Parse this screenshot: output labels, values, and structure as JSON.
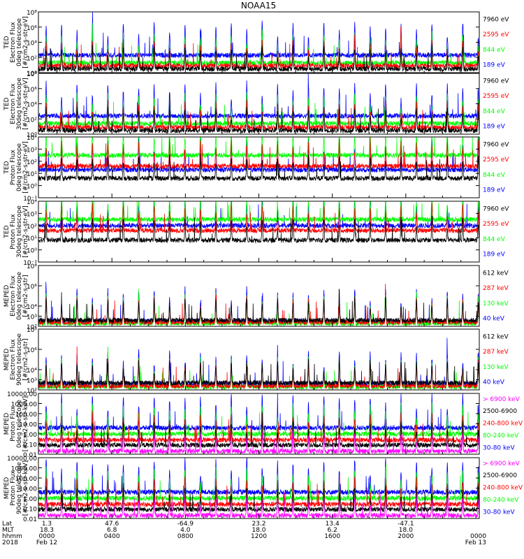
{
  "title": "NOAA15",
  "colors": {
    "black": "#000000",
    "blue": "#0000ff",
    "green": "#00ff00",
    "red": "#ff0000",
    "magenta": "#ff00ff"
  },
  "panels": [
    {
      "ylabel_lines": [
        "TED",
        "Electron Flux",
        "0deg telescope",
        "[#/cm2-s-str-eV]"
      ],
      "ticks": [
        {
          "label": "10⁸",
          "v": 8
        },
        {
          "label": "10⁶",
          "v": 6
        },
        {
          "label": "10⁴",
          "v": 4
        },
        {
          "label": "10²",
          "v": 2
        },
        {
          "label": "10⁰",
          "v": 0
        }
      ],
      "ylog": [
        0,
        8
      ],
      "legend": [
        {
          "text": "7960 eV",
          "color": "#000000"
        },
        {
          "text": "2595 eV",
          "color": "#ff0000"
        },
        {
          "text": "844 eV",
          "color": "#00ff00"
        },
        {
          "text": "189 eV",
          "color": "#0000ff"
        }
      ],
      "levels": {
        "blue": 2.3,
        "green": 1.3,
        "red": 0.9,
        "black": 0.5
      }
    },
    {
      "ylabel_lines": [
        "TED",
        "Electron Flux",
        "30deg telescope",
        "[#/cm2-s-str-eV]"
      ],
      "ticks": [
        {
          "label": "10⁸",
          "v": 8
        },
        {
          "label": "10⁶",
          "v": 6
        },
        {
          "label": "10⁴",
          "v": 4
        },
        {
          "label": "10²",
          "v": 2
        },
        {
          "label": "10⁰",
          "v": 0
        }
      ],
      "ylog": [
        0,
        8
      ],
      "legend": [
        {
          "text": "7960 eV",
          "color": "#000000"
        },
        {
          "text": "2595 eV",
          "color": "#ff0000"
        },
        {
          "text": "844 eV",
          "color": "#00ff00"
        },
        {
          "text": "189 eV",
          "color": "#0000ff"
        }
      ],
      "levels": {
        "blue": 2.4,
        "green": 1.4,
        "red": 0.9,
        "black": 0.5
      }
    },
    {
      "ylabel_lines": [
        "TED",
        "Proton Flux",
        "0deg telescope",
        "[#/cm2-s-str-eV]"
      ],
      "ticks": [
        {
          "label": "10⁴",
          "v": 4
        },
        {
          "label": "10³",
          "v": 3
        },
        {
          "label": "10²",
          "v": 2
        },
        {
          "label": "10¹",
          "v": 1
        },
        {
          "label": "10⁰",
          "v": 0
        },
        {
          "label": "10⁻¹",
          "v": -1
        }
      ],
      "ylog": [
        -1,
        4
      ],
      "legend": [
        {
          "text": "7960 eV",
          "color": "#000000"
        },
        {
          "text": "2595 eV",
          "color": "#ff0000"
        },
        {
          "text": "844 eV",
          "color": "#00ff00"
        },
        {
          "text": "189 eV",
          "color": "#0000ff"
        }
      ],
      "levels": {
        "blue": 1.3,
        "green": 2.5,
        "red": 1.6,
        "black": 0.6
      }
    },
    {
      "ylabel_lines": [
        "TED",
        "Proton Flux",
        "30deg telescope",
        "[#/cm2-s-str-eV]"
      ],
      "ticks": [
        {
          "label": "10⁴",
          "v": 4
        },
        {
          "label": "10³",
          "v": 3
        },
        {
          "label": "10²",
          "v": 2
        },
        {
          "label": "10¹",
          "v": 1
        },
        {
          "label": "10⁰",
          "v": 0
        },
        {
          "label": "10⁻¹",
          "v": -1
        }
      ],
      "ylog": [
        -1,
        4
      ],
      "legend": [
        {
          "text": "7960 eV",
          "color": "#000000"
        },
        {
          "text": "2595 eV",
          "color": "#ff0000"
        },
        {
          "text": "844 eV",
          "color": "#00ff00"
        },
        {
          "text": "189 eV",
          "color": "#0000ff"
        }
      ],
      "levels": {
        "blue": 2.0,
        "green": 2.5,
        "red": 1.6,
        "black": 0.8
      }
    },
    {
      "ylabel_lines": [
        "MEPED",
        "Electron Flux",
        "0deg telescope",
        "[#/cm2-s-str]"
      ],
      "ticks": [
        {
          "label": "10⁸",
          "v": 8
        },
        {
          "label": "10⁶",
          "v": 6
        },
        {
          "label": "10⁴",
          "v": 4
        },
        {
          "label": "10³",
          "v": 3
        },
        {
          "label": "10²",
          "v": 2
        }
      ],
      "ylog": [
        2,
        8
      ],
      "legend": [
        {
          "text": "612 keV",
          "color": "#000000"
        },
        {
          "text": "287 keV",
          "color": "#ff0000"
        },
        {
          "text": "130 keV",
          "color": "#00ff00"
        },
        {
          "text": "40 keV",
          "color": "#0000ff"
        }
      ],
      "levels": {
        "blue": 2.5,
        "green": 2.3,
        "red": 2.4,
        "black": 2.6
      }
    },
    {
      "ylabel_lines": [
        "MEPED",
        "Electron Flux",
        "90deg telescope",
        "[#/cm2-s-str]"
      ],
      "ticks": [
        {
          "label": "10⁸",
          "v": 8
        },
        {
          "label": "10⁶",
          "v": 6
        },
        {
          "label": "10⁴",
          "v": 4
        },
        {
          "label": "10³",
          "v": 3
        },
        {
          "label": "10²",
          "v": 2
        }
      ],
      "ylog": [
        2,
        8
      ],
      "legend": [
        {
          "text": "612 keV",
          "color": "#000000"
        },
        {
          "text": "287 keV",
          "color": "#ff0000"
        },
        {
          "text": "130 keV",
          "color": "#00ff00"
        },
        {
          "text": "40 keV",
          "color": "#0000ff"
        }
      ],
      "levels": {
        "blue": 2.6,
        "green": 2.3,
        "red": 2.4,
        "black": 2.7
      }
    },
    {
      "ylabel_lines": [
        "MEPED",
        "Proton Flux",
        "0deg telescope",
        "[#/cm2-s-str-keV]"
      ],
      "ticks": [
        {
          "label": "10000.00",
          "v": 4
        },
        {
          "label": "1000.00",
          "v": 3
        },
        {
          "label": "100.00",
          "v": 2
        },
        {
          "label": "10.00",
          "v": 1
        },
        {
          "label": "1.00",
          "v": 0
        },
        {
          "label": "0.10",
          "v": -1
        },
        {
          "label": "0.01",
          "v": -2
        }
      ],
      "ylog": [
        -2,
        4
      ],
      "legend": [
        {
          "text": "> 6900 keV",
          "color": "#ff00ff"
        },
        {
          "text": "2500-6900",
          "color": "#000000"
        },
        {
          "text": "240-800 keV",
          "color": "#ff0000"
        },
        {
          "text": "80-240 keV",
          "color": "#00ff00"
        },
        {
          "text": "30-80 keV",
          "color": "#0000ff"
        }
      ],
      "levels": {
        "blue": 0.6,
        "green": 0.0,
        "red": -0.6,
        "black": -1.1,
        "magenta": -1.7
      }
    },
    {
      "ylabel_lines": [
        "MEPED",
        "Proton Flux",
        "90deg telescope",
        "[#/cm2-s-str-keV]"
      ],
      "ticks": [
        {
          "label": "10000.00",
          "v": 4
        },
        {
          "label": "1000.00",
          "v": 3
        },
        {
          "label": "100.00",
          "v": 2
        },
        {
          "label": "10.00",
          "v": 1
        },
        {
          "label": "1.00",
          "v": 0
        },
        {
          "label": "0.10",
          "v": -1
        },
        {
          "label": "0.01",
          "v": -2
        }
      ],
      "ylog": [
        -2,
        4
      ],
      "legend": [
        {
          "text": "> 6900 keV",
          "color": "#ff00ff"
        },
        {
          "text": "2500-6900",
          "color": "#000000"
        },
        {
          "text": "240-800 keV",
          "color": "#ff0000"
        },
        {
          "text": "80-240 keV",
          "color": "#00ff00"
        },
        {
          "text": "30-80 keV",
          "color": "#0000ff"
        }
      ],
      "levels": {
        "blue": 0.6,
        "green": 0.0,
        "red": -0.6,
        "black": -1.1,
        "magenta": -1.7
      }
    }
  ],
  "xaxis": {
    "row_labels": [
      "Lat",
      "MLT",
      "hhmm",
      "2018"
    ],
    "ticks": [
      {
        "lat": "1.3",
        "mlt": "18.3",
        "hhmm": "0000",
        "date": "Feb 12",
        "t": 0
      },
      {
        "lat": "47.6",
        "mlt": "6.8",
        "hhmm": "0400",
        "date": "",
        "t": 4
      },
      {
        "lat": "-64.9",
        "mlt": "4.0",
        "hhmm": "0800",
        "date": "",
        "t": 8
      },
      {
        "lat": "23.2",
        "mlt": "18.0",
        "hhmm": "1200",
        "date": "",
        "t": 12
      },
      {
        "lat": "13.4",
        "mlt": "6.2",
        "hhmm": "1600",
        "date": "",
        "t": 16
      },
      {
        "lat": "-47.1",
        "mlt": "18.0",
        "hhmm": "2000",
        "date": "",
        "t": 20
      },
      {
        "lat": "",
        "mlt": "",
        "hhmm": "0000",
        "date": "Feb 13",
        "t": 24
      }
    ],
    "range_hours": [
      0,
      24
    ]
  },
  "chart_data": {
    "type": "line",
    "title": "NOAA15",
    "x_unit": "hours UT (2018 Feb 12 0000 to Feb 13 0000)",
    "orbit_period_hours": 1.68,
    "yscale": "log"
  }
}
